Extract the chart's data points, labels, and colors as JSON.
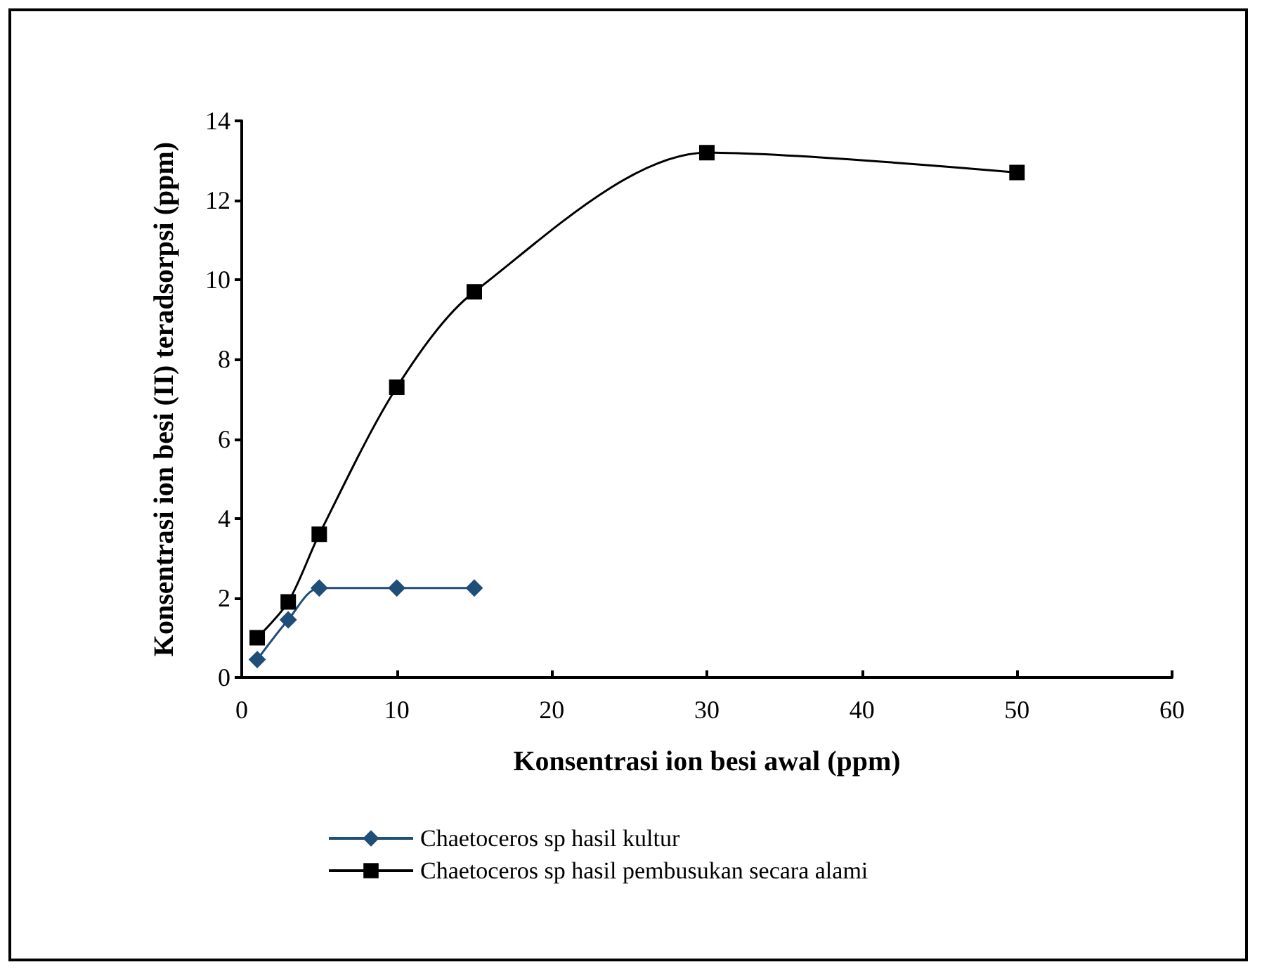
{
  "chart_data": {
    "type": "line",
    "xlabel": "Konsentrasi ion besi awal (ppm)",
    "ylabel": "Konsentrasi ion besi (II) teradsorpsi (ppm)",
    "xlim": [
      0,
      60
    ],
    "xticks": [
      0,
      10,
      20,
      30,
      40,
      50,
      60
    ],
    "ylim": [
      0,
      14
    ],
    "yticks": [
      0,
      2,
      4,
      6,
      8,
      10,
      12,
      14
    ],
    "grid": false,
    "legend": "bottom",
    "series": [
      {
        "name": "Chaetoceros sp hasil kultur",
        "color": "#1f4e79",
        "marker": "diamond",
        "x": [
          1,
          3,
          5,
          10,
          15
        ],
        "values": [
          0.45,
          1.45,
          2.25,
          2.25,
          2.25
        ]
      },
      {
        "name": "Chaetoceros sp hasil pembusukan secara alami",
        "color": "#000000",
        "marker": "square",
        "x": [
          1,
          3,
          5,
          10,
          15,
          30,
          50
        ],
        "values": [
          1.0,
          1.9,
          3.6,
          7.3,
          9.7,
          13.2,
          12.7
        ]
      }
    ]
  }
}
